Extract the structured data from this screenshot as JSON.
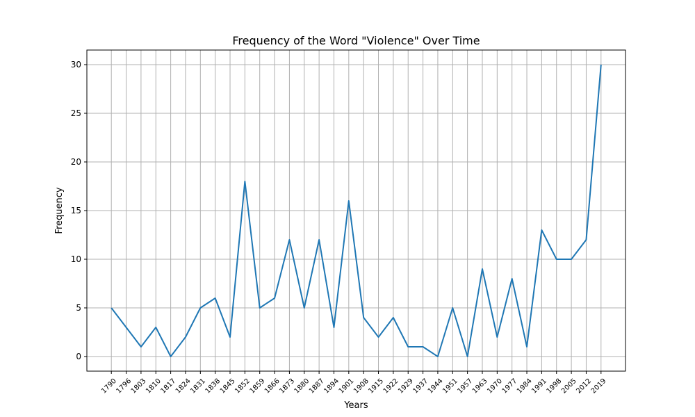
{
  "chart_data": {
    "type": "line",
    "title": "Frequency of the Word \"Violence\" Over Time",
    "xlabel": "Years",
    "ylabel": "Frequency",
    "categories": [
      "1790",
      "1796",
      "1803",
      "1810",
      "1817",
      "1824",
      "1831",
      "1838",
      "1845",
      "1852",
      "1859",
      "1866",
      "1873",
      "1880",
      "1887",
      "1894",
      "1901",
      "1908",
      "1915",
      "1922",
      "1929",
      "1937",
      "1944",
      "1951",
      "1957",
      "1963",
      "1970",
      "1977",
      "1984",
      "1991",
      "1998",
      "2005",
      "2012",
      "2019"
    ],
    "series": [
      {
        "values": [
          5,
          3,
          1,
          3,
          0,
          2,
          5,
          6,
          2,
          18,
          5,
          6,
          12,
          5,
          12,
          3,
          16,
          4,
          2,
          4,
          1,
          1,
          0,
          5,
          0,
          9,
          2,
          8,
          1,
          13,
          10,
          10,
          12,
          30
        ]
      }
    ],
    "ylim": [
      -1.5,
      31.5
    ],
    "yticks": [
      0,
      5,
      10,
      15,
      20,
      25,
      30
    ],
    "grid": true,
    "line_color": "#1f77b4"
  }
}
